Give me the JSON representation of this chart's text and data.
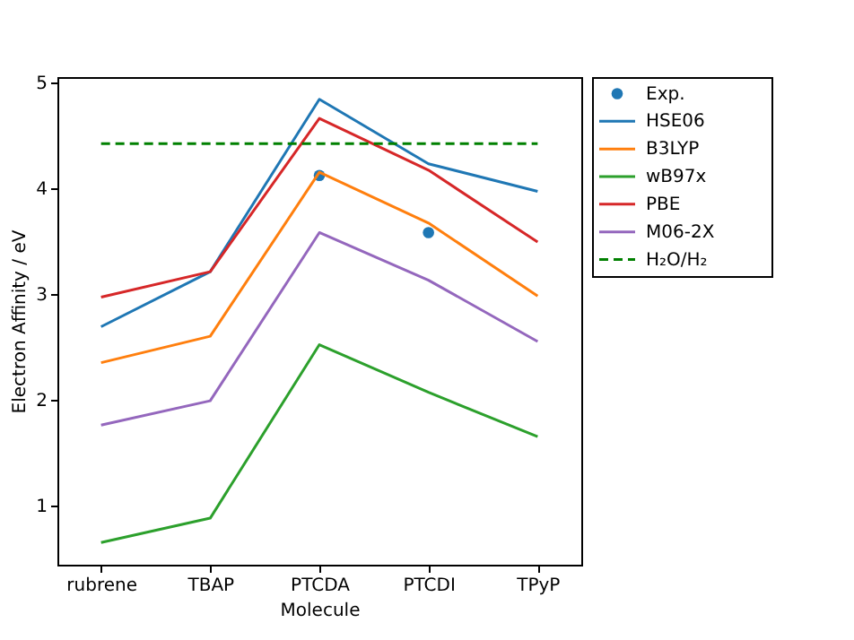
{
  "chart_data": {
    "type": "line",
    "xlabel": "Molecule",
    "ylabel": "Electron Affinity / eV",
    "categories": [
      "rubrene",
      "TBAP",
      "PTCDA",
      "PTCDI",
      "TPyP"
    ],
    "series": [
      {
        "name": "Exp.",
        "type": "scatter",
        "marker": "circle",
        "color": "#1f77b4",
        "values": [
          null,
          null,
          4.12,
          3.58,
          null
        ]
      },
      {
        "name": "HSE06",
        "color": "#1f77b4",
        "values": [
          2.69,
          3.21,
          4.84,
          4.23,
          3.97
        ]
      },
      {
        "name": "B3LYP",
        "color": "#ff7f0e",
        "values": [
          2.35,
          2.6,
          4.15,
          3.67,
          2.98
        ]
      },
      {
        "name": "wB97x",
        "color": "#2ca02c",
        "values": [
          0.65,
          0.88,
          2.52,
          2.07,
          1.65
        ]
      },
      {
        "name": "PBE",
        "color": "#d62728",
        "values": [
          2.97,
          3.21,
          4.66,
          4.17,
          3.49
        ]
      },
      {
        "name": "M06-2X",
        "color": "#9467bd",
        "values": [
          1.76,
          1.99,
          3.58,
          3.13,
          2.55
        ]
      },
      {
        "name": "H₂O/H₂",
        "color": "#008000",
        "line_style": "dashed",
        "values": [
          4.42,
          4.42,
          4.42,
          4.42,
          4.42
        ]
      }
    ],
    "ylim": [
      0.44,
      5.05
    ],
    "yticks": [
      1,
      2,
      3,
      4,
      5
    ],
    "grid": false,
    "legend": "right",
    "marker": "none"
  }
}
